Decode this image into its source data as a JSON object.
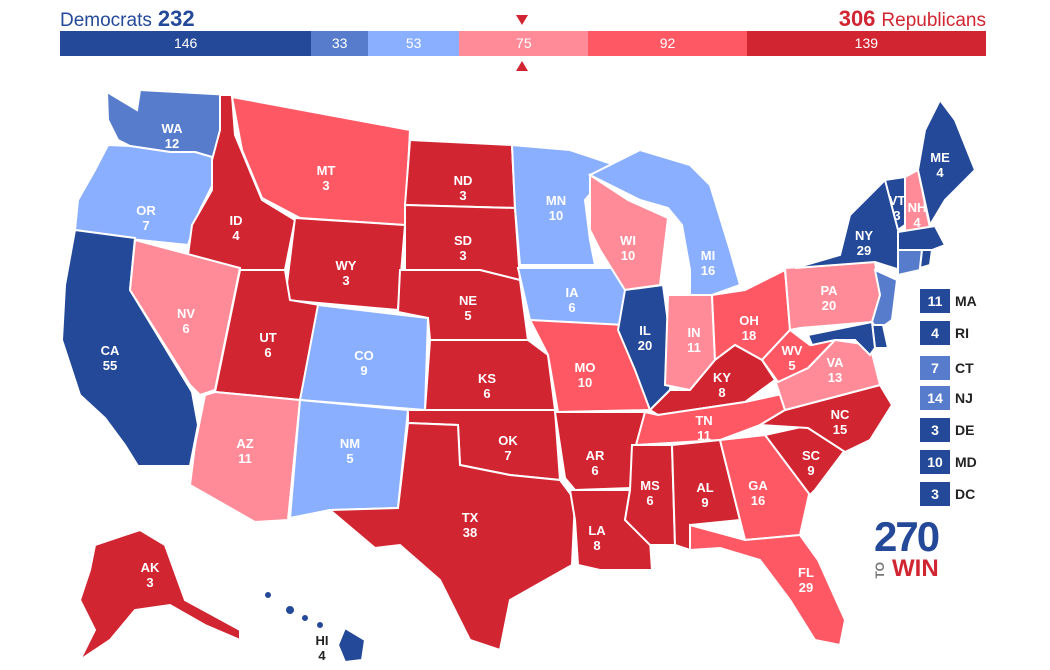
{
  "header": {
    "dem_label": "Democrats",
    "dem_total": "232",
    "rep_label": "Republicans",
    "rep_total": "306"
  },
  "colors": {
    "safe_d": "#244999",
    "likely_d": "#577ccc",
    "lean_d": "#8aafff",
    "lean_r": "#ff8b98",
    "likely_r": "#ff5865",
    "safe_r": "#d22532"
  },
  "bar": [
    {
      "value": 146,
      "label": "146",
      "color": "#244999"
    },
    {
      "value": 33,
      "label": "33",
      "color": "#577ccc"
    },
    {
      "value": 53,
      "label": "53",
      "color": "#8aafff"
    },
    {
      "value": 75,
      "label": "75",
      "color": "#ff8b98"
    },
    {
      "value": 92,
      "label": "92",
      "color": "#ff5865"
    },
    {
      "value": 139,
      "label": "139",
      "color": "#d22532"
    }
  ],
  "states": [
    {
      "abbr": "WA",
      "ev": "12",
      "color": "#577ccc"
    },
    {
      "abbr": "OR",
      "ev": "7",
      "color": "#8aafff"
    },
    {
      "abbr": "CA",
      "ev": "55",
      "color": "#244999"
    },
    {
      "abbr": "ID",
      "ev": "4",
      "color": "#d22532"
    },
    {
      "abbr": "NV",
      "ev": "6",
      "color": "#ff8b98"
    },
    {
      "abbr": "MT",
      "ev": "3",
      "color": "#ff5865"
    },
    {
      "abbr": "WY",
      "ev": "3",
      "color": "#d22532"
    },
    {
      "abbr": "UT",
      "ev": "6",
      "color": "#d22532"
    },
    {
      "abbr": "AZ",
      "ev": "11",
      "color": "#ff8b98"
    },
    {
      "abbr": "CO",
      "ev": "9",
      "color": "#8aafff"
    },
    {
      "abbr": "NM",
      "ev": "5",
      "color": "#8aafff"
    },
    {
      "abbr": "ND",
      "ev": "3",
      "color": "#d22532"
    },
    {
      "abbr": "SD",
      "ev": "3",
      "color": "#d22532"
    },
    {
      "abbr": "NE",
      "ev": "5",
      "color": "#d22532"
    },
    {
      "abbr": "KS",
      "ev": "6",
      "color": "#d22532"
    },
    {
      "abbr": "OK",
      "ev": "7",
      "color": "#d22532"
    },
    {
      "abbr": "TX",
      "ev": "38",
      "color": "#d22532"
    },
    {
      "abbr": "MN",
      "ev": "10",
      "color": "#8aafff"
    },
    {
      "abbr": "IA",
      "ev": "6",
      "color": "#8aafff"
    },
    {
      "abbr": "MO",
      "ev": "10",
      "color": "#ff5865"
    },
    {
      "abbr": "AR",
      "ev": "6",
      "color": "#d22532"
    },
    {
      "abbr": "LA",
      "ev": "8",
      "color": "#d22532"
    },
    {
      "abbr": "WI",
      "ev": "10",
      "color": "#ff8b98"
    },
    {
      "abbr": "IL",
      "ev": "20",
      "color": "#244999"
    },
    {
      "abbr": "MI",
      "ev": "16",
      "color": "#8aafff"
    },
    {
      "abbr": "IN",
      "ev": "11",
      "color": "#ff8b98"
    },
    {
      "abbr": "OH",
      "ev": "18",
      "color": "#ff5865"
    },
    {
      "abbr": "KY",
      "ev": "8",
      "color": "#d22532"
    },
    {
      "abbr": "TN",
      "ev": "11",
      "color": "#ff5865"
    },
    {
      "abbr": "MS",
      "ev": "6",
      "color": "#d22532"
    },
    {
      "abbr": "AL",
      "ev": "9",
      "color": "#d22532"
    },
    {
      "abbr": "GA",
      "ev": "16",
      "color": "#ff5865"
    },
    {
      "abbr": "FL",
      "ev": "29",
      "color": "#ff5865"
    },
    {
      "abbr": "SC",
      "ev": "9",
      "color": "#d22532"
    },
    {
      "abbr": "NC",
      "ev": "15",
      "color": "#d22532"
    },
    {
      "abbr": "VA",
      "ev": "13",
      "color": "#ff8b98"
    },
    {
      "abbr": "WV",
      "ev": "5",
      "color": "#ff5865"
    },
    {
      "abbr": "PA",
      "ev": "20",
      "color": "#ff8b98"
    },
    {
      "abbr": "NY",
      "ev": "29",
      "color": "#244999"
    },
    {
      "abbr": "VT",
      "ev": "3",
      "color": "#244999"
    },
    {
      "abbr": "NH",
      "ev": "4",
      "color": "#ff8b98"
    },
    {
      "abbr": "ME",
      "ev": "4",
      "color": "#244999"
    },
    {
      "abbr": "AK",
      "ev": "3",
      "color": "#d22532"
    },
    {
      "abbr": "HI",
      "ev": "4",
      "color": "#244999"
    }
  ],
  "small_states": [
    {
      "abbr": "MA",
      "ev": "11",
      "color": "#244999"
    },
    {
      "abbr": "RI",
      "ev": "4",
      "color": "#244999"
    },
    {
      "abbr": "CT",
      "ev": "7",
      "color": "#577ccc"
    },
    {
      "abbr": "NJ",
      "ev": "14",
      "color": "#577ccc"
    },
    {
      "abbr": "DE",
      "ev": "3",
      "color": "#244999"
    },
    {
      "abbr": "MD",
      "ev": "10",
      "color": "#244999"
    },
    {
      "abbr": "DC",
      "ev": "3",
      "color": "#244999"
    }
  ],
  "logo": {
    "number": "270",
    "to": "TO",
    "win": "WIN"
  }
}
